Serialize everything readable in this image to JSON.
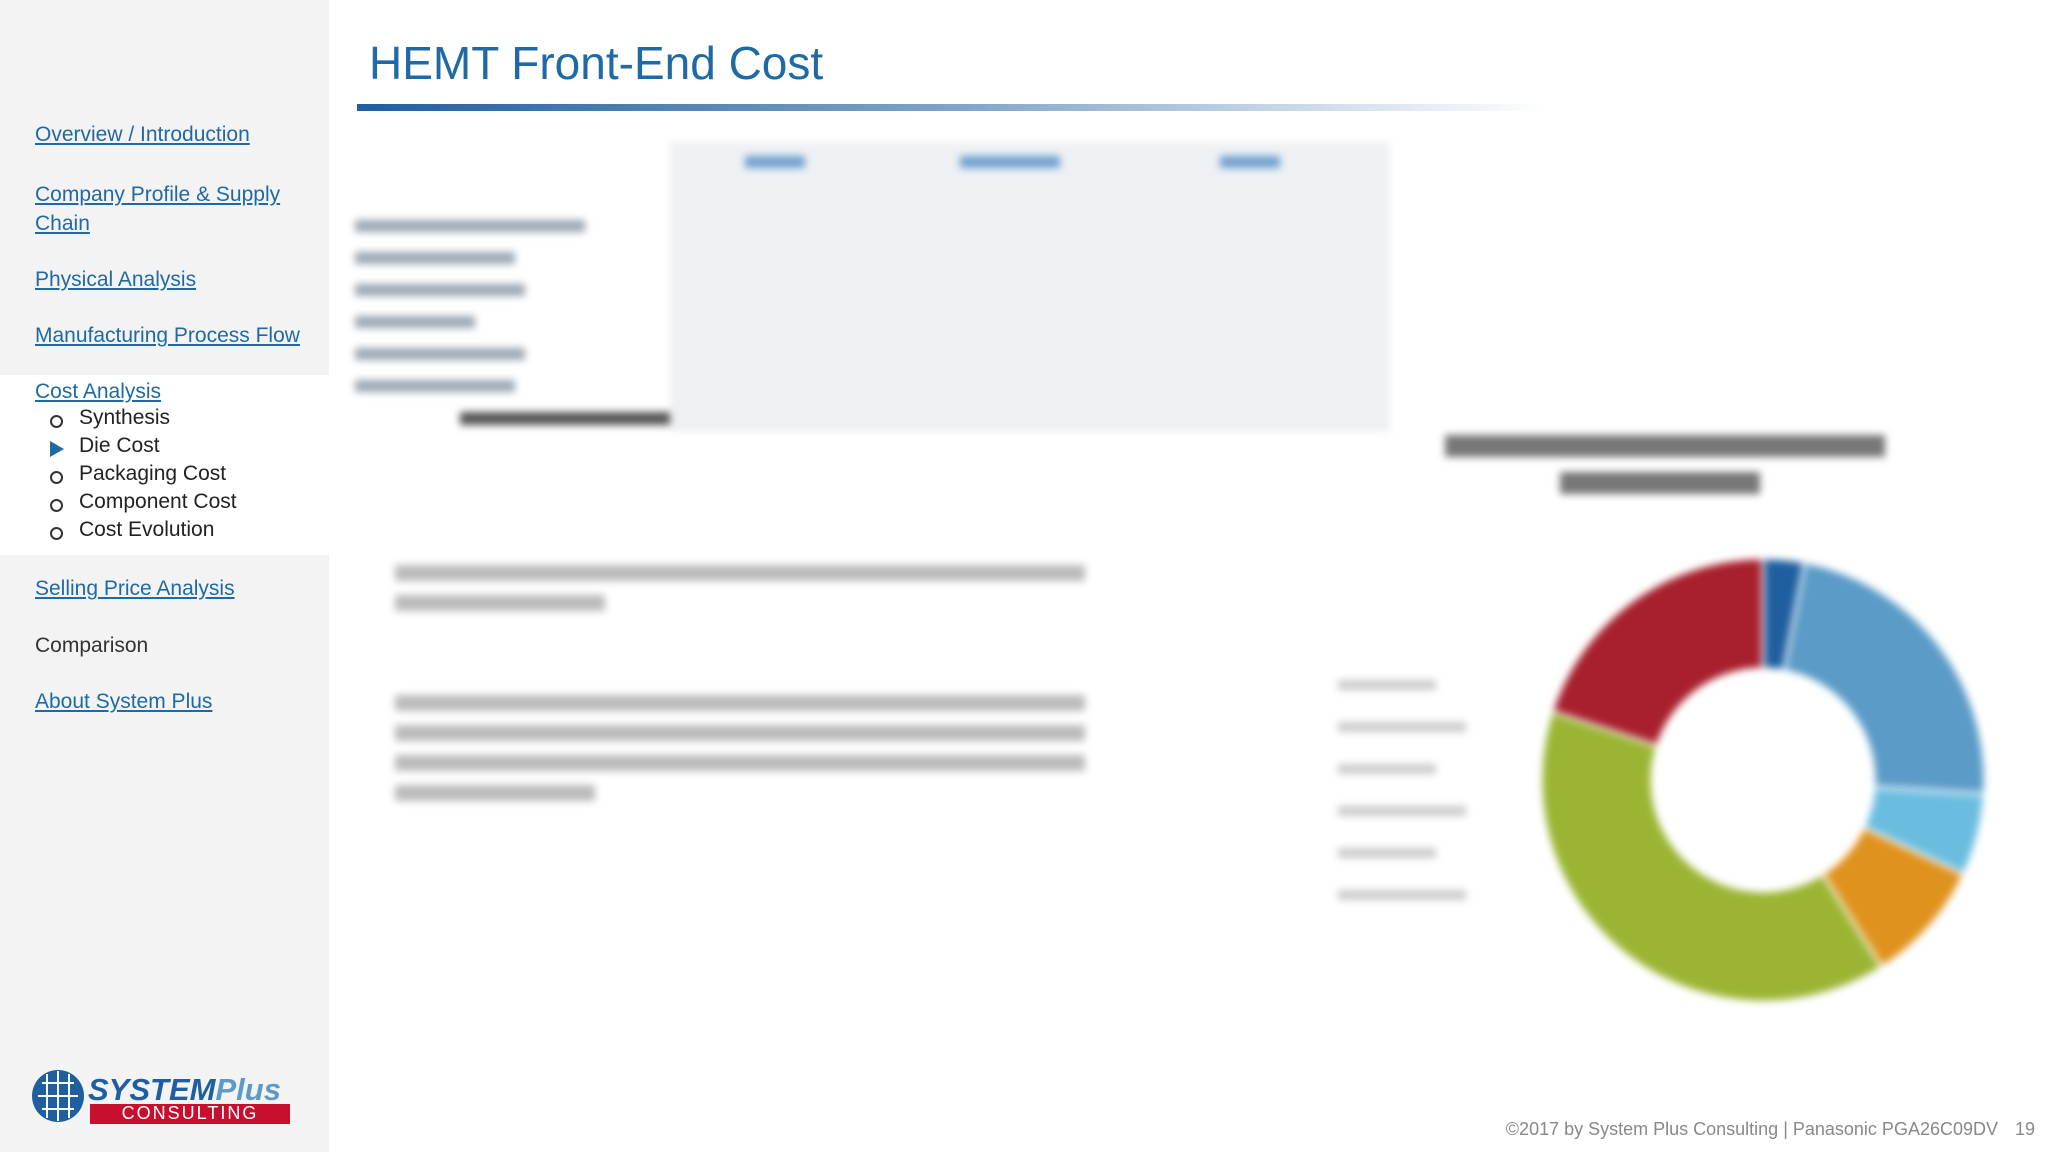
{
  "header": {
    "title": "HEMT Front-End Cost"
  },
  "nav": {
    "items": [
      {
        "label": "Overview / Introduction",
        "link": true
      },
      {
        "label": "Company Profile & Supply Chain",
        "link": true
      },
      {
        "label": "Physical Analysis",
        "link": true
      },
      {
        "label": "Manufacturing Process Flow",
        "link": true
      },
      {
        "label": "Cost Analysis",
        "link": true,
        "children": [
          {
            "label": "Synthesis",
            "current": false
          },
          {
            "label": "Die Cost",
            "current": true
          },
          {
            "label": "Packaging Cost",
            "current": false
          },
          {
            "label": "Component Cost",
            "current": false
          },
          {
            "label": "Cost Evolution",
            "current": false
          }
        ]
      },
      {
        "label": "Selling Price Analysis",
        "link": true
      },
      {
        "label": "Comparison",
        "link": false
      },
      {
        "label": "About System Plus",
        "link": true
      }
    ]
  },
  "logo": {
    "name": "SYSTEM",
    "accent": "Plus",
    "tagline": "CONSULTING"
  },
  "footer": {
    "text": "©2017 by System Plus Consulting | Panasonic PGA26C09DV",
    "page": "19"
  },
  "chart_data": {
    "type": "pie",
    "values": [
      3,
      23,
      6,
      9,
      39,
      20
    ],
    "colors": [
      "#1f5fa0",
      "#5b9bc8",
      "#6bbde0",
      "#e0921e",
      "#9bb533",
      "#a8202e"
    ]
  }
}
